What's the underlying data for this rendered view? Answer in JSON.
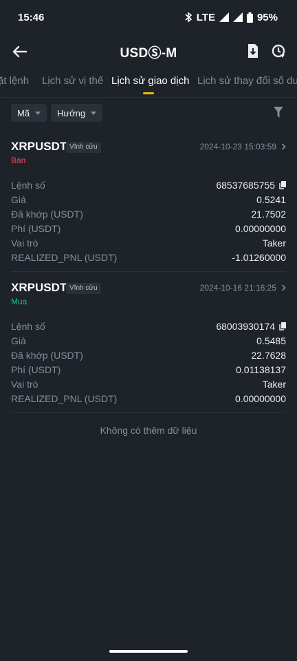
{
  "status": {
    "time": "15:46",
    "network": "LTE",
    "battery": "95%"
  },
  "header": {
    "title": "USDⓈ-M",
    "back_icon": "arrow-left-icon",
    "download_icon": "download-icon",
    "history_icon": "history-icon"
  },
  "tabs": [
    {
      "label": "ặt lệnh"
    },
    {
      "label": "Lịch sử vị thế"
    },
    {
      "label": "Lịch sử giao dịch"
    },
    {
      "label": "Lịch sử thay đổi số dư"
    }
  ],
  "filters": {
    "symbol": "Mã",
    "direction": "Hướng"
  },
  "trades": [
    {
      "symbol": "XRPUSDT",
      "badge": "Vĩnh cửu",
      "timestamp": "2024-10-23 15:03:59",
      "side": "Bán",
      "side_color": "#f6465d",
      "rows": [
        {
          "label": "Lệnh số",
          "value": "68537685755"
        },
        {
          "label": "Giá",
          "value": "0.5241"
        },
        {
          "label": "Đã khớp (USDT)",
          "value": "21.7502"
        },
        {
          "label": "Phí (USDT)",
          "value": "0.00000000"
        },
        {
          "label": "Vai trò",
          "value": "Taker"
        },
        {
          "label": "REALIZED_PNL (USDT)",
          "value": "-1.01260000"
        }
      ]
    },
    {
      "symbol": "XRPUSDT",
      "badge": "Vĩnh cửu",
      "timestamp": "2024-10-16 21:16:25",
      "side": "Mua",
      "side_color": "#0ecb81",
      "rows": [
        {
          "label": "Lệnh số",
          "value": "68003930174"
        },
        {
          "label": "Giá",
          "value": "0.5485"
        },
        {
          "label": "Đã khớp (USDT)",
          "value": "22.7628"
        },
        {
          "label": "Phí (USDT)",
          "value": "0.01138137"
        },
        {
          "label": "Vai trò",
          "value": "Taker"
        },
        {
          "label": "REALIZED_PNL (USDT)",
          "value": "0.00000000"
        }
      ]
    }
  ],
  "footer": {
    "no_more": "Không có thêm dữ liệu"
  }
}
